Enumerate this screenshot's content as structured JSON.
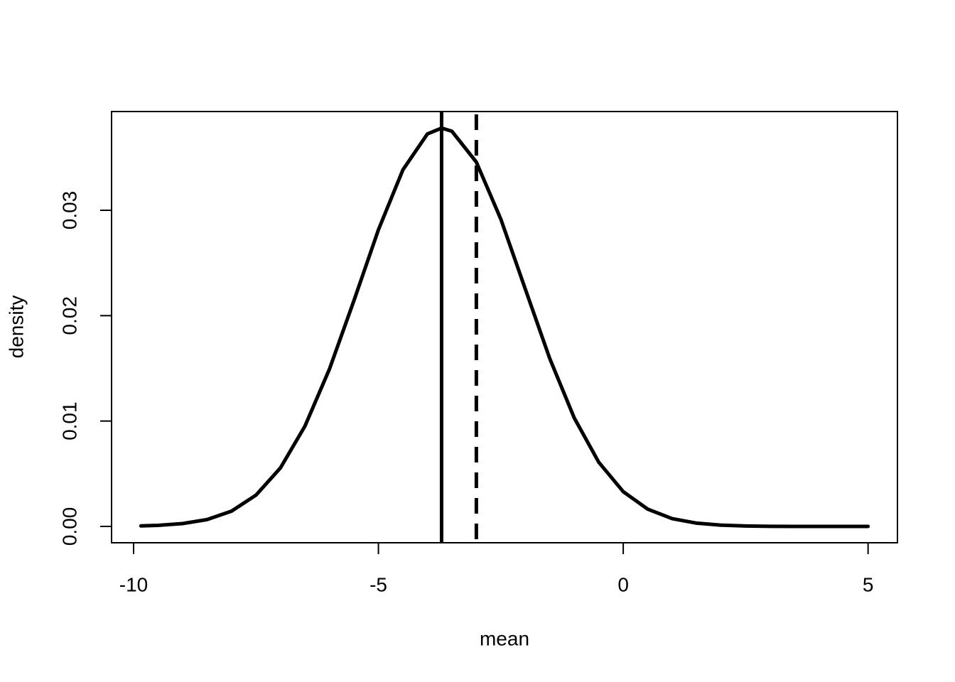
{
  "chart_data": {
    "type": "line",
    "x_label": "mean",
    "y_label": "density",
    "x": [
      -9.85,
      -9.5,
      -9,
      -8.5,
      -8,
      -7.5,
      -7,
      -6.5,
      -6,
      -5.5,
      -5,
      -4.5,
      -4,
      -3.71,
      -3.5,
      -3,
      -2.5,
      -2,
      -1.5,
      -1,
      -0.5,
      0,
      0.5,
      1,
      1.5,
      2,
      2.5,
      3,
      3.5,
      4,
      4.5,
      5
    ],
    "series": [
      {
        "color": "#000000",
        "values": [
          5e-05,
          0.0001,
          0.00027,
          0.00065,
          0.00145,
          0.00297,
          0.00556,
          0.00952,
          0.01493,
          0.02143,
          0.02815,
          0.03384,
          0.03724,
          0.0378,
          0.0375,
          0.03457,
          0.02916,
          0.02252,
          0.01592,
          0.01029,
          0.00609,
          0.0033,
          0.00164,
          0.00074,
          0.00031,
          0.00012,
          4e-05,
          1e-05,
          0,
          0,
          0,
          0
        ]
      }
    ],
    "vlines": [
      {
        "x": -3.71,
        "style": "solid"
      },
      {
        "x": -3,
        "style": "dashed"
      }
    ],
    "xlim": [
      -10.45,
      5.6
    ],
    "ylim": [
      -0.00155,
      0.03937
    ],
    "xticks": [
      -10,
      -5,
      0,
      5
    ],
    "yticks": [
      {
        "value": 0,
        "label": "0.00"
      },
      {
        "value": 0.01,
        "label": "0.01"
      },
      {
        "value": 0.02,
        "label": "0.02"
      },
      {
        "value": 0.03,
        "label": "0.03"
      }
    ]
  }
}
